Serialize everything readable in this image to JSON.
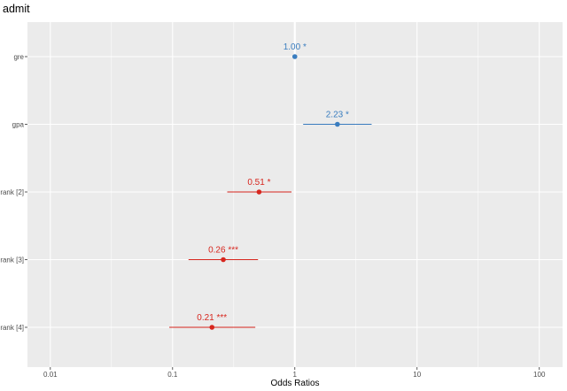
{
  "chart_data": {
    "type": "scatter",
    "subtype": "forest-plot",
    "title": "admit",
    "xlabel": "Odds Ratios",
    "x_scale": "log10",
    "xlim": [
      0.0065,
      155
    ],
    "x_ticks": [
      0.01,
      0.1,
      1,
      10,
      100
    ],
    "x_tick_labels": [
      "0.01",
      "0.1",
      "1",
      "10",
      "100"
    ],
    "reference_line": 1,
    "grid": true,
    "categories": [
      "gre",
      "gpa",
      "rank [2]",
      "rank [3]",
      "rank [4]"
    ],
    "series": [
      {
        "estimates": [
          1.0,
          2.23,
          0.51,
          0.26,
          0.21
        ],
        "ci_low": [
          1.0,
          1.17,
          0.28,
          0.135,
          0.094
        ],
        "ci_high": [
          1.0,
          4.25,
          0.94,
          0.5,
          0.475
        ],
        "labels": [
          "1.00 *",
          "2.23 *",
          "0.51 *",
          "0.26 ***",
          "0.21 ***"
        ],
        "colors": [
          "#3a7dbf",
          "#3a7dbf",
          "#d7261e",
          "#d7261e",
          "#d7261e"
        ]
      }
    ],
    "colors": {
      "positive": "#3a7dbf",
      "negative": "#d7261e",
      "panel": "#ebebeb",
      "grid": "#ffffff"
    }
  }
}
